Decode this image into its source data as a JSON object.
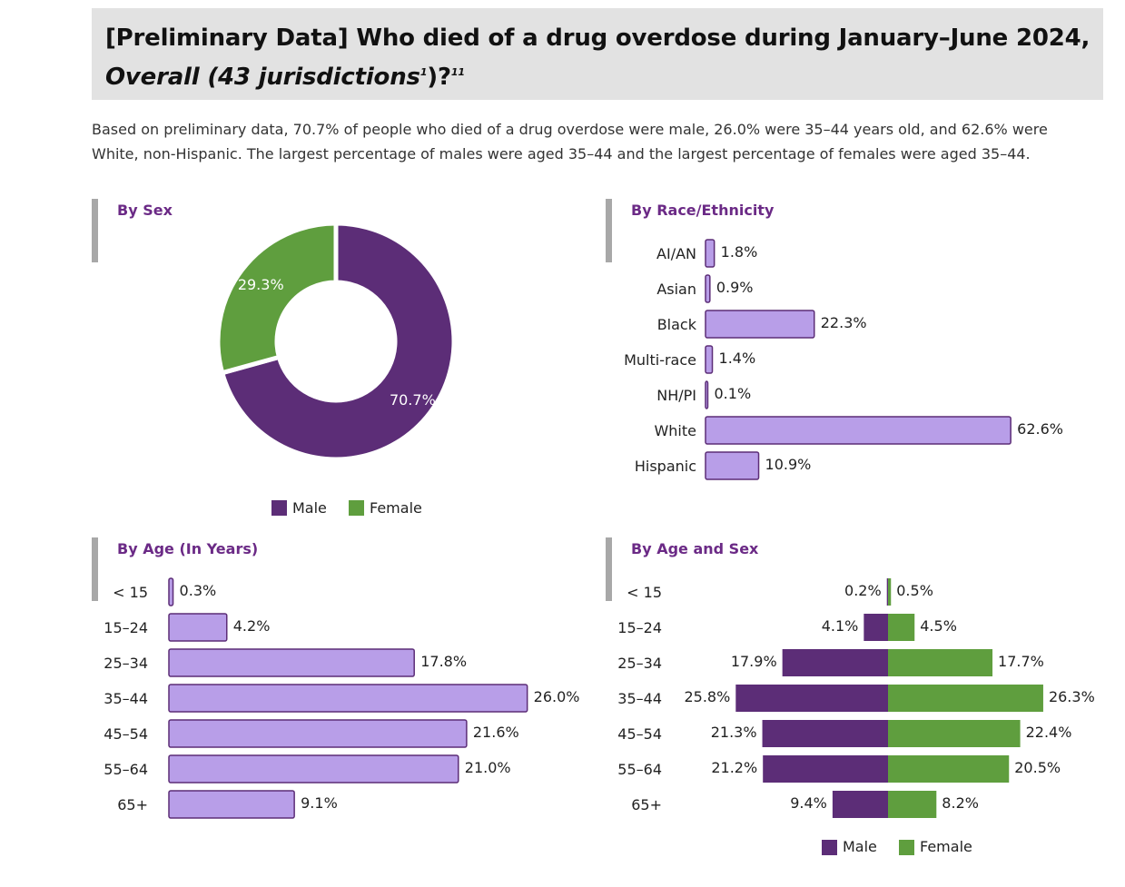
{
  "header": {
    "title_line1": "[Preliminary Data] Who died of a drug overdose during January–June 2024,",
    "title_line2_text": "Overall (43 jurisdictions",
    "title_footnote1": "1",
    "title_line2_end": ")?",
    "title_footnote2": "11"
  },
  "summary": "Based on preliminary data, 70.7% of people who died of a drug overdose were male, 26.0% were 35–44 years old, and 62.6% were White, non-Hispanic. The largest percentage of males were aged 35–44 and the largest percentage of females were aged 35–44.",
  "colors": {
    "male": "#5c2d77",
    "female": "#5f9e3e",
    "bar_fill": "#b89ee8",
    "bar_stroke": "#5c2d77",
    "section_title": "#6b2a86"
  },
  "chart_data": [
    {
      "id": "by_sex",
      "type": "pie",
      "title": "By Sex",
      "donut": true,
      "labels": [
        "Male",
        "Female"
      ],
      "values": [
        70.7,
        29.3
      ],
      "value_labels": [
        "70.7%",
        "29.3%"
      ],
      "legend": {
        "placement": "bottom",
        "entries": [
          "Male",
          "Female"
        ]
      }
    },
    {
      "id": "by_race",
      "type": "bar",
      "orientation": "horizontal",
      "title": "By Race/Ethnicity",
      "categories": [
        "AI/AN",
        "Asian",
        "Black",
        "Multi-race",
        "NH/PI",
        "White",
        "Hispanic"
      ],
      "values": [
        1.8,
        0.9,
        22.3,
        1.4,
        0.1,
        62.6,
        10.9
      ],
      "value_labels": [
        "1.8%",
        "0.9%",
        "22.3%",
        "1.4%",
        "0.1%",
        "62.6%",
        "10.9%"
      ]
    },
    {
      "id": "by_age",
      "type": "bar",
      "orientation": "horizontal",
      "title": "By Age (In Years)",
      "categories": [
        "< 15",
        "15–24",
        "25–34",
        "35–44",
        "45–54",
        "55–64",
        "65+"
      ],
      "values": [
        0.3,
        4.2,
        17.8,
        26.0,
        21.6,
        21.0,
        9.1
      ],
      "value_labels": [
        "0.3%",
        "4.2%",
        "17.8%",
        "26.0%",
        "21.6%",
        "21.0%",
        "9.1%"
      ]
    },
    {
      "id": "by_age_sex",
      "type": "bar",
      "orientation": "horizontal-diverging",
      "title": "By Age and Sex",
      "categories": [
        "< 15",
        "15–24",
        "25–34",
        "35–44",
        "45–54",
        "55–64",
        "65+"
      ],
      "series": [
        {
          "name": "Male",
          "values": [
            0.2,
            4.1,
            17.9,
            25.8,
            21.3,
            21.2,
            9.4
          ],
          "value_labels": [
            "0.2%",
            "4.1%",
            "17.9%",
            "25.8%",
            "21.3%",
            "21.2%",
            "9.4%"
          ]
        },
        {
          "name": "Female",
          "values": [
            0.5,
            4.5,
            17.7,
            26.3,
            22.4,
            20.5,
            8.2
          ],
          "value_labels": [
            "0.5%",
            "4.5%",
            "17.7%",
            "26.3%",
            "22.4%",
            "20.5%",
            "8.2%"
          ]
        }
      ],
      "legend": {
        "placement": "bottom",
        "entries": [
          "Male",
          "Female"
        ]
      }
    }
  ]
}
